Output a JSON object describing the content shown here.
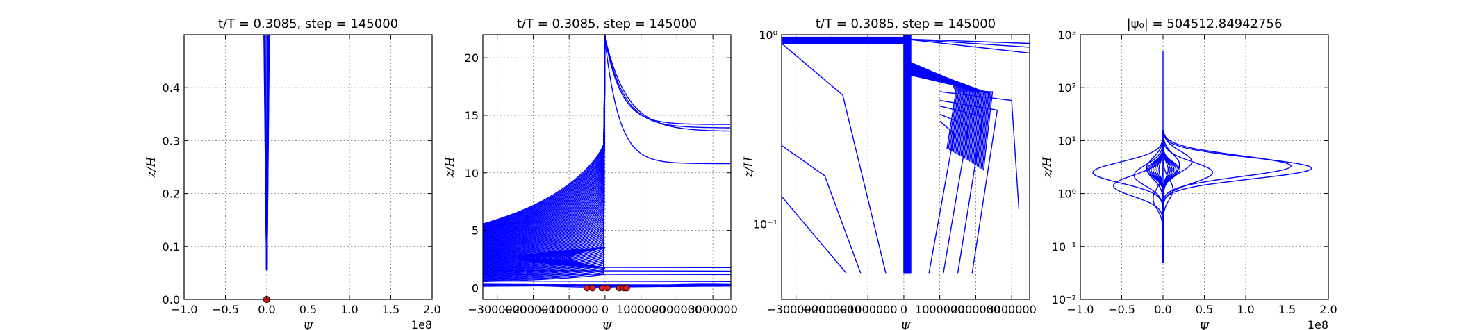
{
  "chart_data": [
    {
      "type": "line",
      "title": "t/T = 0.3085, step = 145000",
      "xlabel": "Ψ",
      "ylabel": "z/H",
      "xlim": [
        -100000000,
        200000000
      ],
      "ylim": [
        0,
        0.5
      ],
      "yscale": "linear",
      "xticks": [
        -100000000,
        -50000000,
        0,
        50000000,
        100000000,
        150000000,
        200000000
      ],
      "xtick_labels": [
        "−1.0",
        "−0.5",
        "0.0",
        "0.5",
        "1.0",
        "1.5",
        "2.0"
      ],
      "yticks": [
        0,
        0.1,
        0.2,
        0.3,
        0.4
      ],
      "ytick_labels": [
        "0.0",
        "0.1",
        "0.2",
        "0.3",
        "0.4"
      ],
      "x_offset_label": "1e8",
      "grid": true,
      "series": [
        {
          "x": [
            -2000000,
            -800000,
            0,
            300000,
            1500000,
            4000000
          ],
          "y": [
            0.5,
            0.5,
            0.5,
            0.5,
            0.5,
            0.5
          ]
        },
        {
          "x": [
            -1800000,
            -700000,
            0,
            250000,
            1300000,
            3500000
          ],
          "y": [
            0.05,
            0.05,
            0.05,
            0.05,
            0.05,
            0.05
          ]
        }
      ],
      "markers": [
        {
          "x": 0,
          "y": 0
        },
        {
          "x": 200000,
          "y": 0
        },
        {
          "x": -200000,
          "y": 0
        }
      ]
    },
    {
      "type": "line",
      "title": "t/T = 0.3085, step = 145000",
      "xlabel": "Ψ",
      "ylabel": "z/H",
      "xlim": [
        -3400000,
        3500000
      ],
      "ylim": [
        -1,
        22
      ],
      "yscale": "linear",
      "xticks": [
        -3000000,
        -2000000,
        -1000000,
        0,
        1000000,
        2000000,
        3000000
      ],
      "xtick_labels": [
        "−3000000",
        "−2000000",
        "−1000000",
        "0",
        "1000000",
        "2000000",
        "3000000"
      ],
      "yticks": [
        0,
        5,
        10,
        15,
        20
      ],
      "ytick_labels": [
        "0",
        "5",
        "10",
        "15",
        "20"
      ],
      "grid": true,
      "markers": [
        {
          "x": -500000,
          "y": 0
        },
        {
          "x": -350000,
          "y": 0
        },
        {
          "x": -80000,
          "y": 0
        },
        {
          "x": 60000,
          "y": 0
        },
        {
          "x": 400000,
          "y": 0
        },
        {
          "x": 520000,
          "y": 0
        },
        {
          "x": 600000,
          "y": 0
        }
      ]
    },
    {
      "type": "line",
      "title": "t/T = 0.3085, step = 145000",
      "xlabel": "Ψ",
      "ylabel": "z/H",
      "xlim": [
        -3400000,
        3500000
      ],
      "ylim": [
        0.04,
        1
      ],
      "yscale": "log",
      "xticks": [
        -3000000,
        -2000000,
        -1000000,
        0,
        1000000,
        2000000,
        3000000
      ],
      "xtick_labels": [
        "−3000000",
        "−2000000",
        "−1000000",
        "0",
        "1000000",
        "2000000",
        "3000000"
      ],
      "yticks": [
        0.1,
        1
      ],
      "ytick_labels": [
        "10⁻¹",
        "10⁰"
      ],
      "grid": true
    },
    {
      "type": "line",
      "title": "|ψ₀| = 504512.84942756",
      "xlabel": "Ψ",
      "ylabel": "z/H",
      "xlim": [
        -100000000,
        200000000
      ],
      "ylim": [
        0.01,
        1000
      ],
      "yscale": "log",
      "xticks": [
        -100000000,
        -50000000,
        0,
        50000000,
        100000000,
        150000000,
        200000000
      ],
      "xtick_labels": [
        "−1.0",
        "−0.5",
        "0.0",
        "0.5",
        "1.0",
        "1.5",
        "2.0"
      ],
      "yticks": [
        0.01,
        0.1,
        1,
        10,
        100,
        1000
      ],
      "ytick_labels": [
        "10⁻²",
        "10⁻¹",
        "10⁰",
        "10¹",
        "10²",
        "10³"
      ],
      "x_offset_label": "1e8",
      "grid": true
    }
  ]
}
